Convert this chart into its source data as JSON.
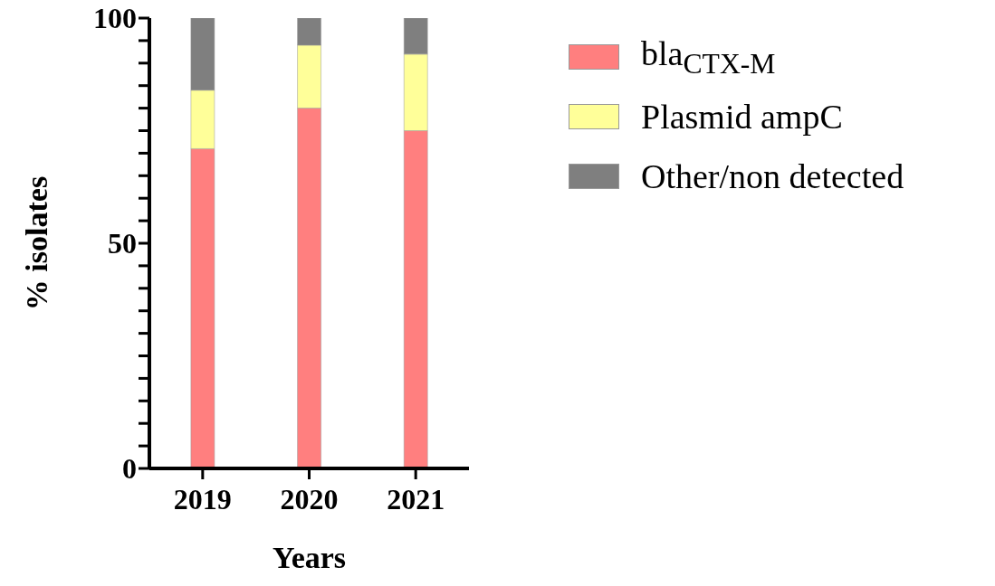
{
  "chart_data": {
    "type": "bar",
    "stacked": true,
    "categories": [
      "2019",
      "2020",
      "2021"
    ],
    "series": [
      {
        "name": "bla$_{CTX-M}$",
        "color": "#ff7f7f",
        "values": [
          71,
          80,
          75
        ]
      },
      {
        "name": "Plasmid ampC",
        "color": "#ffff99",
        "values": [
          13,
          14,
          17
        ]
      },
      {
        "name": "Other/non detected",
        "color": "#7f7f7f",
        "values": [
          16,
          6,
          8
        ]
      }
    ],
    "xlabel": "Years",
    "ylabel": "% isolates",
    "ylim": [
      0,
      100
    ],
    "yticks": [
      0,
      {
        "value": 5,
        "label": null
      },
      {
        "value": 10,
        "label": null
      },
      {
        "value": 15,
        "label": null
      },
      {
        "value": 20,
        "label": null
      },
      {
        "value": 25,
        "label": null
      },
      {
        "value": 30,
        "label": null
      },
      {
        "value": 35,
        "label": null
      },
      {
        "value": 40,
        "label": null
      },
      {
        "value": 45,
        "label": null
      },
      50,
      {
        "value": 55,
        "label": null
      },
      {
        "value": 60,
        "label": null
      },
      {
        "value": 65,
        "label": null
      },
      {
        "value": 70,
        "label": null
      },
      {
        "value": 75,
        "label": null
      },
      {
        "value": 80,
        "label": null
      },
      {
        "value": 85,
        "label": null
      },
      {
        "value": 90,
        "label": null
      },
      {
        "value": 95,
        "label": null
      },
      100
    ],
    "grid": false,
    "legend": "right"
  }
}
